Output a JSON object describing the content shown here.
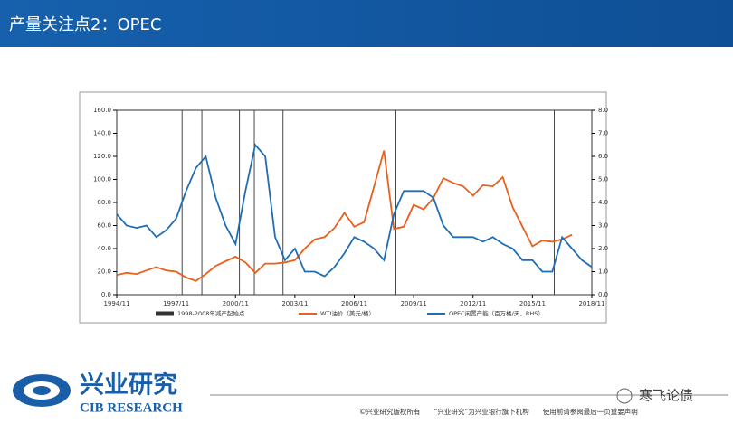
{
  "header": {
    "title": "产量关注点2：OPEC"
  },
  "chart_data": {
    "type": "line",
    "categories": [
      "1994/11",
      null,
      null,
      null,
      null,
      null,
      "1997/11",
      null,
      null,
      null,
      null,
      null,
      "2000/11",
      null,
      null,
      null,
      null,
      null,
      "2003/11",
      null,
      null,
      null,
      null,
      null,
      "2006/11",
      null,
      null,
      null,
      null,
      null,
      "2009/11",
      null,
      null,
      null,
      null,
      null,
      "2012/11",
      null,
      null,
      null,
      null,
      null,
      "2015/11",
      null,
      null,
      null,
      null,
      null,
      "2018/11"
    ],
    "series": [
      {
        "name": "WTI油价（美元/桶）",
        "color": "#e8601c",
        "values": [
          17,
          19,
          18,
          21,
          24,
          21,
          20,
          15,
          12,
          18,
          25,
          29,
          33,
          28,
          19,
          27,
          27,
          28,
          30,
          40,
          48,
          50,
          58,
          71,
          59,
          63,
          94,
          125,
          57,
          59,
          78,
          74,
          84,
          101,
          97,
          94,
          86,
          95,
          94,
          102,
          76,
          59,
          42,
          47,
          46,
          48,
          52,
          null,
          null
        ]
      },
      {
        "name": "OPEC闲置产能（百万桶/天，RHS）",
        "color": "#1f6db5",
        "axis": "y2",
        "values": [
          3.5,
          3.0,
          2.9,
          3.0,
          2.5,
          2.8,
          3.3,
          4.5,
          5.5,
          6.0,
          4.2,
          3.0,
          2.2,
          4.5,
          6.5,
          6.0,
          2.5,
          1.5,
          2.0,
          1.0,
          1.0,
          0.8,
          1.2,
          1.8,
          2.5,
          2.3,
          2.0,
          1.5,
          3.5,
          4.5,
          4.5,
          4.5,
          4.2,
          3.0,
          2.5,
          2.5,
          2.5,
          2.3,
          2.5,
          2.2,
          2.0,
          1.5,
          1.5,
          1.0,
          1.0,
          2.5,
          2.0,
          1.5,
          1.2
        ]
      }
    ],
    "events": {
      "name": "1998-2008年减产起始点",
      "color": "#333333",
      "x": [
        6.6,
        8.6,
        12.4,
        13.9,
        16.8,
        28.2,
        44.2
      ]
    },
    "ylim": [
      0,
      160
    ],
    "yticks": [
      {
        "value": 0,
        "label": "0.0"
      },
      {
        "value": 20,
        "label": "20.0"
      },
      {
        "value": 40,
        "label": "40.0"
      },
      {
        "value": 60,
        "label": "60.0"
      },
      {
        "value": 80,
        "label": "80.0"
      },
      {
        "value": 100,
        "label": "100.0"
      },
      {
        "value": 120,
        "label": "120.0"
      },
      {
        "value": 140,
        "label": "140.0"
      },
      {
        "value": 160,
        "label": "160.0"
      }
    ],
    "y2lim": [
      0,
      8
    ],
    "y2ticks": [
      {
        "value": 0,
        "label": "0.0"
      },
      {
        "value": 1,
        "label": "1.0"
      },
      {
        "value": 2,
        "label": "2.0"
      },
      {
        "value": 3,
        "label": "3.0"
      },
      {
        "value": 4,
        "label": "4.0"
      },
      {
        "value": 5,
        "label": "5.0"
      },
      {
        "value": 6,
        "label": "6.0"
      },
      {
        "value": 7,
        "label": "7.0"
      },
      {
        "value": 8,
        "label": "8.0"
      }
    ]
  },
  "footer": {
    "logo": "兴业研究",
    "logo_en": "CIB RESEARCH",
    "notice": "©兴业研究版权所有　　“兴业研究”为兴业银行旗下机构　　使用前请参阅最后一页重要声明",
    "wechat": "寒飞论债"
  }
}
